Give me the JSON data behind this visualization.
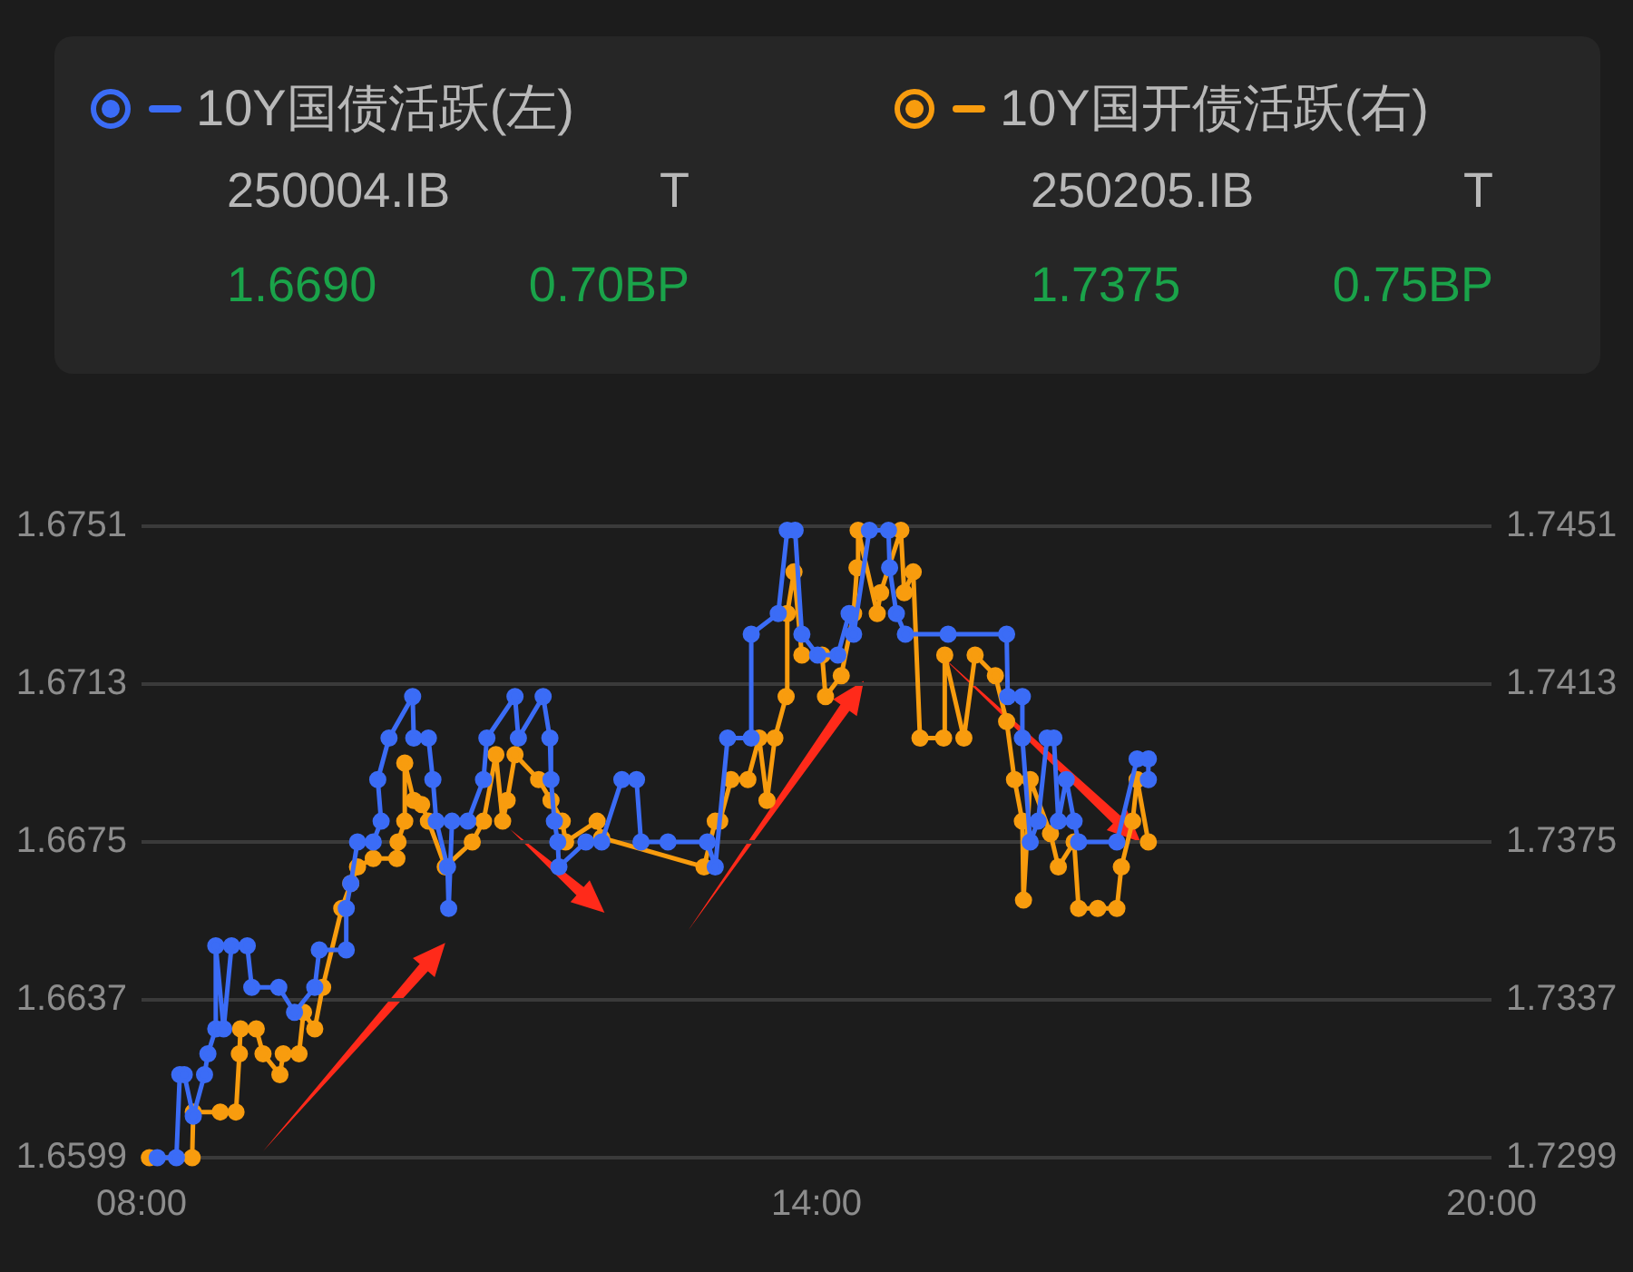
{
  "chart_data": {
    "type": "line",
    "marker": "circle",
    "grid": "y",
    "legend": "top",
    "annotations": [
      "250004.IB",
      "T",
      "1.6690",
      "0.70BP",
      "250205.IB",
      "T",
      "1.7375",
      "0.75BP"
    ],
    "xlim": [
      8,
      20
    ],
    "xticks": [
      {
        "value": 8,
        "label": "08:00"
      },
      {
        "value": 14,
        "label": "14:00"
      },
      {
        "value": 20,
        "label": "20:00"
      }
    ],
    "ylim": [
      1.6599,
      1.6751
    ],
    "yticks": [
      1.6599,
      1.6637,
      1.6675,
      1.6713,
      1.6751
    ],
    "y2lim": [
      1.7299,
      1.7451
    ],
    "y2ticks": [
      1.7299,
      1.7337,
      1.7375,
      1.7413,
      1.7451
    ],
    "series": [
      {
        "name": "10Y国债活跃(左)",
        "color": "#3b6cf6",
        "x": [
          8.14,
          8.31,
          8.34,
          8.38,
          8.46,
          8.56,
          8.59,
          8.66,
          8.66,
          8.73,
          8.8,
          8.94,
          8.98,
          9.22,
          9.36,
          9.54,
          9.58,
          9.82,
          9.82,
          9.86,
          9.92,
          10.06,
          10.13,
          10.1,
          10.2,
          10.41,
          10.42,
          10.55,
          10.59,
          10.62,
          10.72,
          10.73,
          10.76,
          10.9,
          11.04,
          11.07,
          11.32,
          11.35,
          11.57,
          11.63,
          11.64,
          11.67,
          11.7,
          11.71,
          11.95,
          12.09,
          12.27,
          12.4,
          12.44,
          12.68,
          13.03,
          13.1,
          13.21,
          13.42,
          13.42,
          13.66,
          13.74,
          13.81,
          13.87,
          14.01,
          14.19,
          14.29,
          14.33,
          14.47,
          14.64,
          14.65,
          14.71,
          14.79,
          15.17,
          15.69,
          15.7,
          15.83,
          15.83,
          15.9,
          15.97,
          16.05,
          16.11,
          16.15,
          16.22,
          16.29,
          16.33,
          16.67,
          16.85,
          16.95,
          16.95
        ],
        "values": [
          1.6599,
          1.6599,
          1.6619,
          1.6619,
          1.6609,
          1.6619,
          1.6624,
          1.663,
          1.665,
          1.663,
          1.665,
          1.665,
          1.664,
          1.664,
          1.6634,
          1.664,
          1.6649,
          1.6649,
          1.6659,
          1.6665,
          1.6675,
          1.6675,
          1.668,
          1.669,
          1.67,
          1.671,
          1.67,
          1.67,
          1.669,
          1.668,
          1.6669,
          1.6659,
          1.668,
          1.668,
          1.669,
          1.67,
          1.671,
          1.67,
          1.671,
          1.67,
          1.669,
          1.668,
          1.6675,
          1.6669,
          1.6675,
          1.6675,
          1.669,
          1.669,
          1.6675,
          1.6675,
          1.6675,
          1.6669,
          1.67,
          1.67,
          1.6725,
          1.673,
          1.675,
          1.675,
          1.6725,
          1.672,
          1.672,
          1.673,
          1.6725,
          1.675,
          1.675,
          1.6741,
          1.673,
          1.6725,
          1.6725,
          1.6725,
          1.671,
          1.671,
          1.67,
          1.6675,
          1.668,
          1.67,
          1.67,
          1.668,
          1.669,
          1.668,
          1.6675,
          1.6675,
          1.6695,
          1.6695,
          1.669
        ]
      },
      {
        "name": "10Y国开债活跃(右)",
        "color": "#f89c0e",
        "axis": "y2",
        "x": [
          8.07,
          8.45,
          8.46,
          8.7,
          8.84,
          8.87,
          8.88,
          9.02,
          9.08,
          9.23,
          9.26,
          9.4,
          9.44,
          9.54,
          9.61,
          9.78,
          9.86,
          9.92,
          10.06,
          10.27,
          10.28,
          10.34,
          10.34,
          10.42,
          10.49,
          10.55,
          10.7,
          10.94,
          11.04,
          11.15,
          11.21,
          11.25,
          11.32,
          11.53,
          11.64,
          11.74,
          11.77,
          12.05,
          12.09,
          13.0,
          13.1,
          13.14,
          13.24,
          13.39,
          13.49,
          13.56,
          13.63,
          13.73,
          13.74,
          13.8,
          13.87,
          14.05,
          14.08,
          14.22,
          14.33,
          14.36,
          14.37,
          14.54,
          14.57,
          14.75,
          14.78,
          14.86,
          14.92,
          15.13,
          15.14,
          15.31,
          15.41,
          15.59,
          15.69,
          15.76,
          15.83,
          15.84,
          15.9,
          16.08,
          16.15,
          16.29,
          16.33,
          16.5,
          16.67,
          16.71,
          16.81,
          16.85,
          16.95
        ],
        "values": [
          1.7299,
          1.7299,
          1.731,
          1.731,
          1.731,
          1.7324,
          1.733,
          1.733,
          1.7324,
          1.7319,
          1.7324,
          1.7324,
          1.7334,
          1.733,
          1.734,
          1.7359,
          1.7365,
          1.7369,
          1.7371,
          1.7371,
          1.7375,
          1.738,
          1.7394,
          1.7385,
          1.7384,
          1.738,
          1.7369,
          1.7375,
          1.738,
          1.7396,
          1.738,
          1.7385,
          1.7396,
          1.739,
          1.7385,
          1.738,
          1.7375,
          1.738,
          1.7376,
          1.7369,
          1.738,
          1.738,
          1.739,
          1.739,
          1.74,
          1.7385,
          1.74,
          1.741,
          1.743,
          1.744,
          1.742,
          1.742,
          1.741,
          1.7415,
          1.743,
          1.7441,
          1.745,
          1.743,
          1.7435,
          1.745,
          1.7435,
          1.744,
          1.74,
          1.74,
          1.742,
          1.74,
          1.742,
          1.7415,
          1.7404,
          1.739,
          1.738,
          1.7361,
          1.739,
          1.7377,
          1.7369,
          1.7375,
          1.7359,
          1.7359,
          1.7359,
          1.7369,
          1.738,
          1.739,
          1.7375
        ]
      }
    ]
  }
}
